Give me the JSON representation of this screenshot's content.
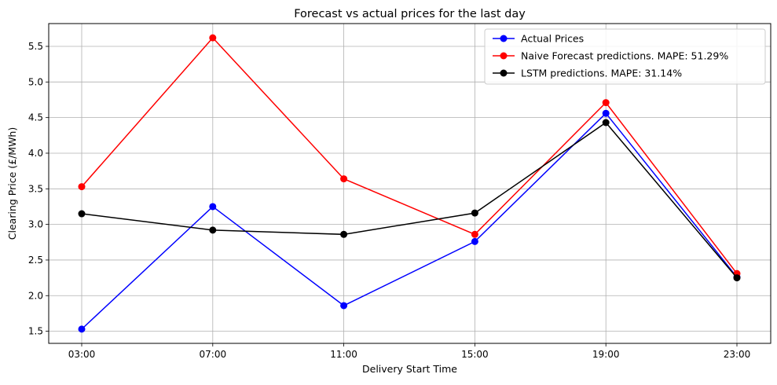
{
  "chart_data": {
    "type": "line",
    "title": "Forecast vs actual prices for the last day",
    "xlabel": "Delivery Start Time",
    "ylabel": "Clearing Price (£/MWh)",
    "categories": [
      "03:00",
      "07:00",
      "11:00",
      "15:00",
      "19:00",
      "23:00"
    ],
    "yticks": [
      1.5,
      2.0,
      2.5,
      3.0,
      3.5,
      4.0,
      4.5,
      5.0,
      5.5
    ],
    "ytick_labels": [
      "1.5",
      "2.0",
      "2.5",
      "3.0",
      "3.5",
      "4.0",
      "4.5",
      "5.0",
      "5.5"
    ],
    "ylim": [
      1.33,
      5.82
    ],
    "grid": true,
    "legend_position": "top-right",
    "series": [
      {
        "name": "Actual Prices",
        "color": "#0000ff",
        "values": [
          1.53,
          3.25,
          1.86,
          2.76,
          4.56,
          2.26
        ]
      },
      {
        "name": "Naive Forecast predictions. MAPE: 51.29%",
        "color": "#ff0000",
        "values": [
          3.53,
          5.62,
          3.64,
          2.86,
          4.71,
          2.31
        ]
      },
      {
        "name": "LSTM predictions. MAPE: 31.14%",
        "color": "#000000",
        "values": [
          3.15,
          2.92,
          2.86,
          3.16,
          4.43,
          2.25
        ]
      }
    ]
  }
}
